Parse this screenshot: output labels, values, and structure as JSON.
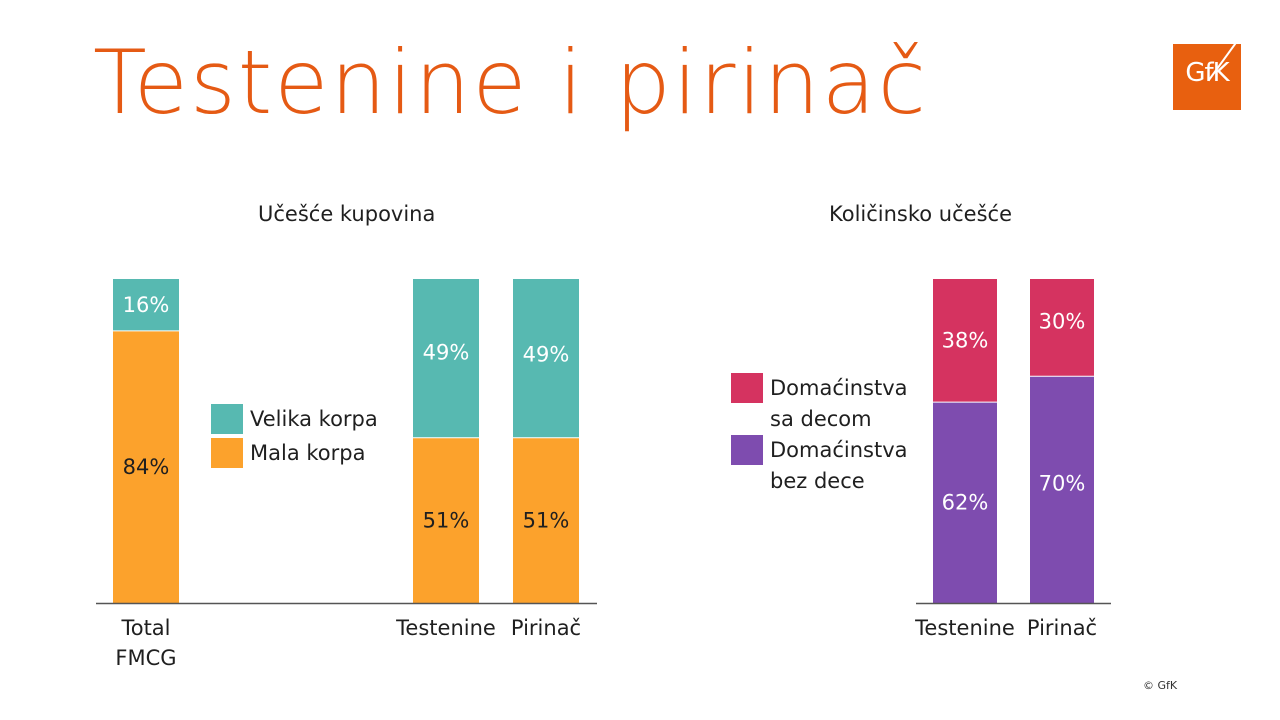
{
  "title": "Testenine i pirinač",
  "logo_text": "GfK",
  "copyright": "© GfK",
  "colors": {
    "title": "#e55a14",
    "veliko": "#57b9b1",
    "malo": "#fca22c",
    "sa_decom": "#d53360",
    "bez_dece": "#7e4caf",
    "axis": "#555555"
  },
  "chart_data": [
    {
      "type": "bar",
      "stacked": true,
      "title": "Učešće kupovina",
      "categories": [
        [
          "Total",
          "FMCG"
        ],
        [
          "Testenine"
        ],
        [
          "Pirinač"
        ]
      ],
      "ylim": [
        0,
        100
      ],
      "series": [
        {
          "name": "Mala korpa",
          "color": "#fca22c",
          "values": [
            84,
            51,
            51
          ],
          "labels": [
            "84%",
            "51%",
            "51%"
          ]
        },
        {
          "name": "Velika korpa",
          "color": "#57b9b1",
          "values": [
            16,
            49,
            49
          ],
          "labels": [
            "16%",
            "49%",
            "49%"
          ]
        }
      ],
      "legend": {
        "placement": "middle",
        "items": [
          {
            "label": [
              "Velika korpa"
            ],
            "color": "#57b9b1"
          },
          {
            "label": [
              "Mala korpa"
            ],
            "color": "#fca22c"
          }
        ]
      }
    },
    {
      "type": "bar",
      "stacked": true,
      "title": "Količinsko učešće",
      "categories": [
        [
          "Testenine"
        ],
        [
          "Pirinač"
        ]
      ],
      "ylim": [
        0,
        100
      ],
      "series": [
        {
          "name": "Domaćinstva bez dece",
          "color": "#7e4caf",
          "values": [
            62,
            70
          ],
          "labels": [
            "62%",
            "70%"
          ]
        },
        {
          "name": "Domaćinstva sa decom",
          "color": "#d53360",
          "values": [
            38,
            30
          ],
          "labels": [
            "38%",
            "30%"
          ]
        }
      ],
      "legend": {
        "placement": "left",
        "items": [
          {
            "label": [
              "Domaćinstva",
              "sa decom"
            ],
            "color": "#d53360"
          },
          {
            "label": [
              "Domaćinstva",
              "bez dece"
            ],
            "color": "#7e4caf"
          }
        ]
      }
    }
  ]
}
